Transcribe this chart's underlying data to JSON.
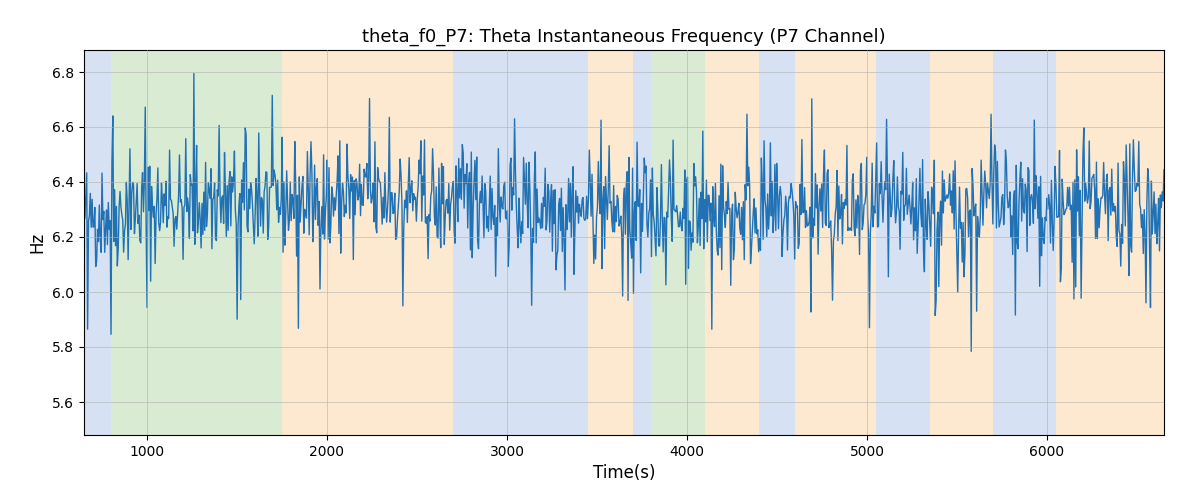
{
  "title": "theta_f0_P7: Theta Instantaneous Frequency (P7 Channel)",
  "xlabel": "Time(s)",
  "ylabel": "Hz",
  "xlim": [
    650,
    6650
  ],
  "ylim": [
    5.48,
    6.88
  ],
  "yticks": [
    5.6,
    5.8,
    6.0,
    6.2,
    6.4,
    6.6,
    6.8
  ],
  "xticks": [
    1000,
    2000,
    3000,
    4000,
    5000,
    6000
  ],
  "line_color": "#2171b5",
  "line_width": 1.0,
  "seed": 42,
  "n_points": 1200,
  "mean_freq": 6.28,
  "freq_std": 0.1,
  "background_color": "#ffffff",
  "grid_color": "#b0b0b0",
  "bands": [
    {
      "xmin": 650,
      "xmax": 800,
      "color": "#aec6e8",
      "alpha": 0.5
    },
    {
      "xmin": 800,
      "xmax": 1750,
      "color": "#b6d9a8",
      "alpha": 0.5
    },
    {
      "xmin": 1750,
      "xmax": 2700,
      "color": "#fdd5a0",
      "alpha": 0.5
    },
    {
      "xmin": 2700,
      "xmax": 3450,
      "color": "#aec6e8",
      "alpha": 0.5
    },
    {
      "xmin": 3450,
      "xmax": 3700,
      "color": "#fdd5a0",
      "alpha": 0.5
    },
    {
      "xmin": 3700,
      "xmax": 3800,
      "color": "#aec6e8",
      "alpha": 0.5
    },
    {
      "xmin": 3800,
      "xmax": 4100,
      "color": "#b6d9a8",
      "alpha": 0.5
    },
    {
      "xmin": 4100,
      "xmax": 4400,
      "color": "#fdd5a0",
      "alpha": 0.5
    },
    {
      "xmin": 4400,
      "xmax": 4600,
      "color": "#aec6e8",
      "alpha": 0.5
    },
    {
      "xmin": 4600,
      "xmax": 5050,
      "color": "#fdd5a0",
      "alpha": 0.5
    },
    {
      "xmin": 5050,
      "xmax": 5350,
      "color": "#aec6e8",
      "alpha": 0.5
    },
    {
      "xmin": 5350,
      "xmax": 5700,
      "color": "#fdd5a0",
      "alpha": 0.5
    },
    {
      "xmin": 5700,
      "xmax": 6050,
      "color": "#aec6e8",
      "alpha": 0.5
    },
    {
      "xmin": 6050,
      "xmax": 6650,
      "color": "#fdd5a0",
      "alpha": 0.5
    }
  ],
  "figsize": [
    12.0,
    5.0
  ],
  "dpi": 100,
  "title_fontsize": 13,
  "label_fontsize": 12
}
